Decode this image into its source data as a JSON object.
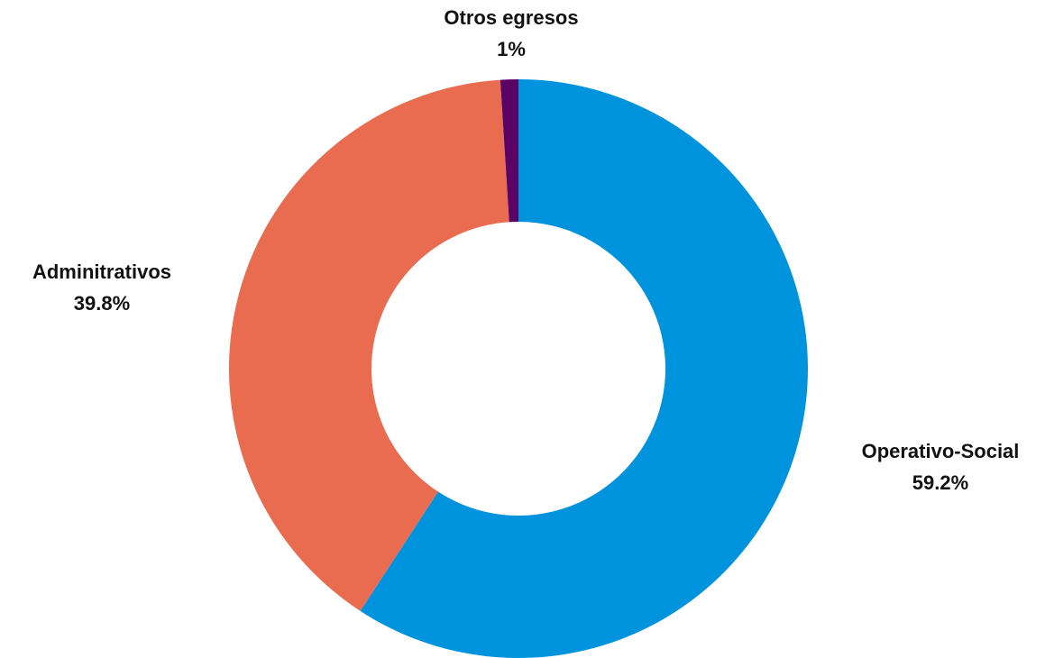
{
  "chart_data": {
    "type": "pie",
    "donut": true,
    "title": "",
    "legend": "none",
    "slices": [
      {
        "label": "Operativo-Social",
        "value": 59.2,
        "display": "59.2%",
        "color": "#0093DD"
      },
      {
        "label": "Adminitrativos",
        "value": 39.8,
        "display": "39.8%",
        "color": "#EA6C50"
      },
      {
        "label": "Otros egresos",
        "value": 1,
        "display": "1%",
        "color": "#5A0265"
      }
    ]
  }
}
